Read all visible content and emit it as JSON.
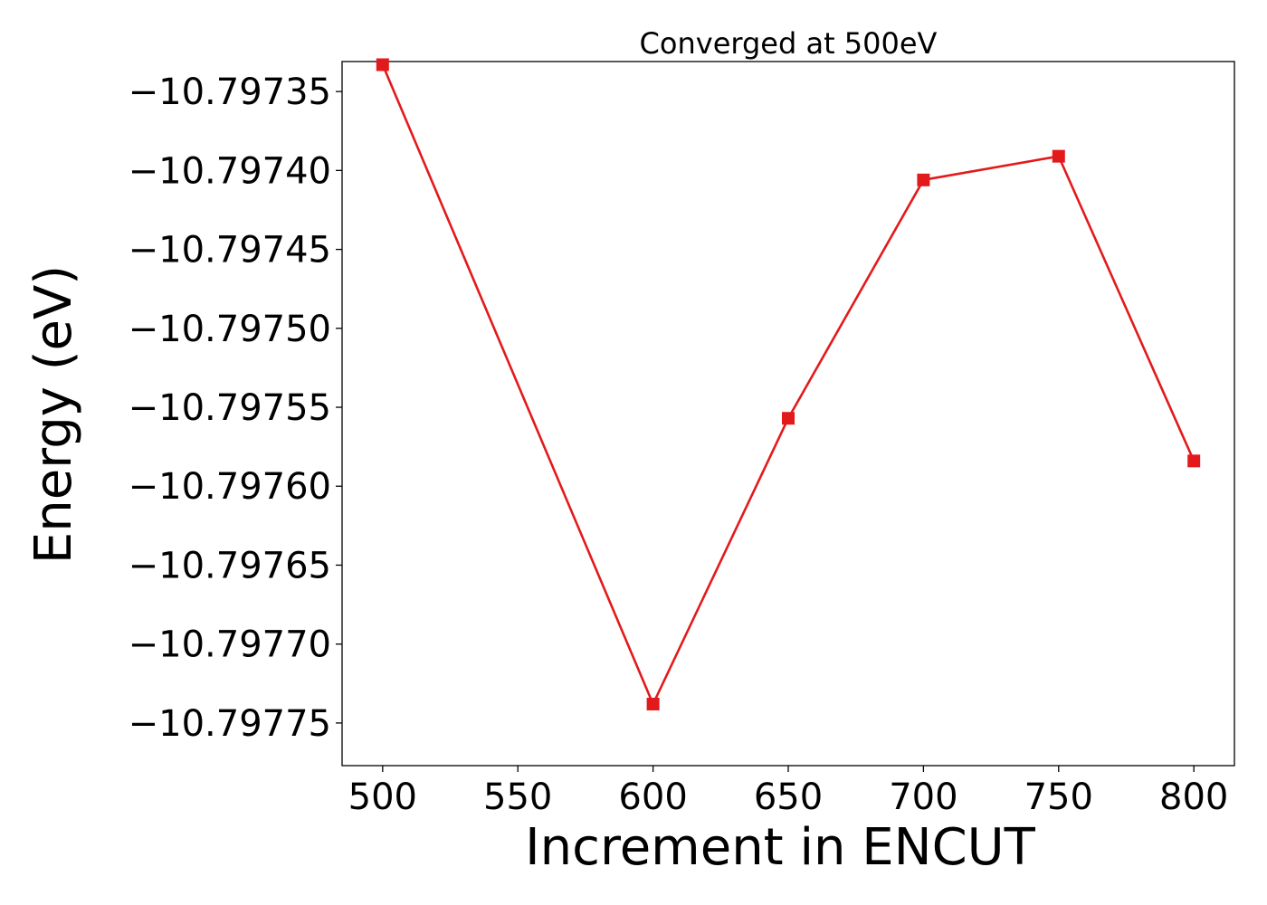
{
  "chart_data": {
    "type": "line",
    "title": "Converged at 500eV",
    "xlabel": "Increment in ENCUT",
    "ylabel": "Energy (eV)",
    "x": [
      500,
      600,
      650,
      700,
      750,
      800
    ],
    "series": [
      {
        "values": [
          -10.797333,
          -10.797738,
          -10.797557,
          -10.797406,
          -10.797391,
          -10.797584
        ],
        "color": "#e31a1c",
        "marker": "square"
      }
    ],
    "xlim": [
      485,
      815
    ],
    "ylim": [
      -10.797777,
      -10.797331
    ],
    "x_ticks": [
      500,
      550,
      600,
      650,
      700,
      750,
      800
    ],
    "x_tick_labels": [
      "500",
      "550",
      "600",
      "650",
      "700",
      "750",
      "800"
    ],
    "y_ticks": [
      -10.79735,
      -10.7974,
      -10.79745,
      -10.7975,
      -10.79755,
      -10.7976,
      -10.79765,
      -10.7977,
      -10.79775
    ],
    "y_tick_labels": [
      "−10.79735",
      "−10.79740",
      "−10.79745",
      "−10.79750",
      "−10.79755",
      "−10.79760",
      "−10.79765",
      "−10.79770",
      "−10.79775"
    ],
    "grid": false,
    "legend": "none"
  }
}
